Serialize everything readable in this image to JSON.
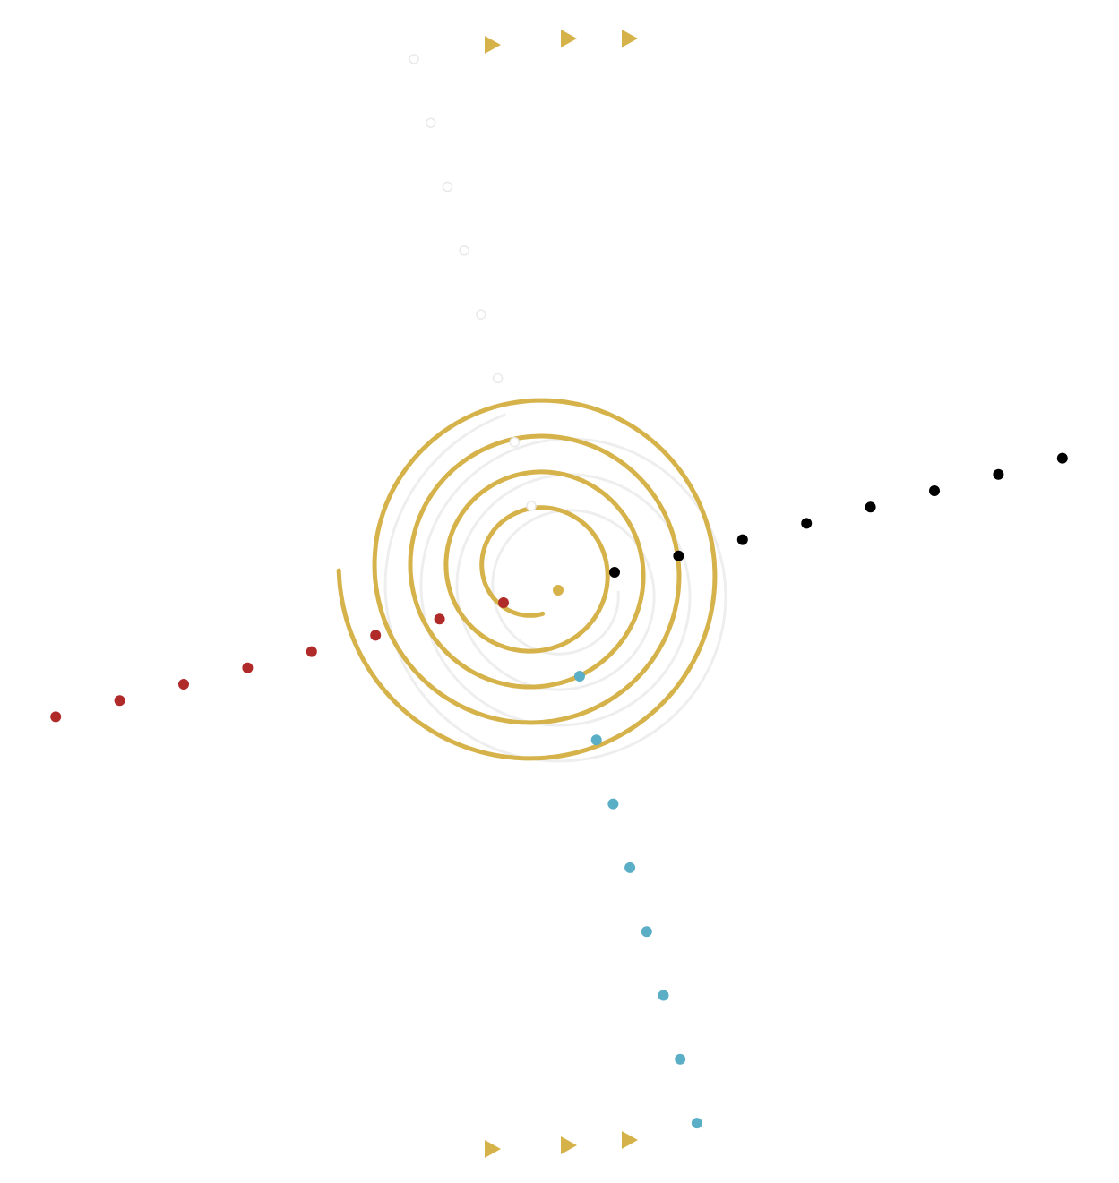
{
  "colors": {
    "background": "#ffffff",
    "gold_spiral": "#d6b24a",
    "faint_spiral": "#eeeeee",
    "center_dot": "#d6b24a",
    "red_dots": "#b02a2a",
    "black_dots": "#000000",
    "blue_dots": "#5aaec6",
    "arrows": "#d6b24a",
    "faint_dots": "#e9e9e9"
  },
  "groups": {
    "red_dot_count": 8,
    "black_dot_count": 8,
    "blue_dot_count": 8,
    "faint_dot_count": 8,
    "arrow_count_top": 3,
    "arrow_count_bottom": 3
  }
}
